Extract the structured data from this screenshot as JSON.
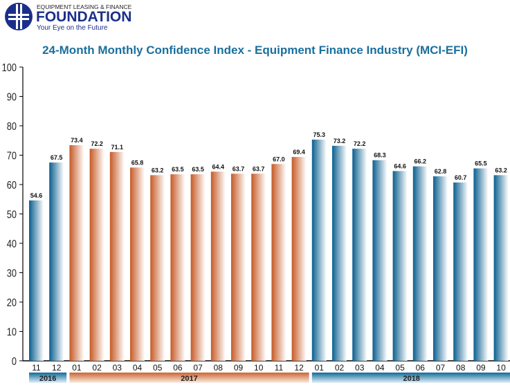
{
  "logo": {
    "line1": "EQUIPMENT LEASING & FINANCE",
    "line2": "FOUNDATION",
    "tagline": "Your Eye on the Future"
  },
  "chart_data": {
    "type": "bar",
    "title": "24-Month Monthly Confidence Index - Equipment Finance Industry (MCI-EFI)",
    "categories": [
      "11",
      "12",
      "01",
      "02",
      "03",
      "04",
      "05",
      "06",
      "07",
      "08",
      "09",
      "10",
      "11",
      "12",
      "01",
      "02",
      "03",
      "04",
      "05",
      "06",
      "07",
      "08",
      "09",
      "10"
    ],
    "years": [
      {
        "label": "2016",
        "start": 0,
        "end": 1,
        "color": "#0f6a98"
      },
      {
        "label": "2017",
        "start": 2,
        "end": 13,
        "color": "#cc6430"
      },
      {
        "label": "2018",
        "start": 14,
        "end": 23,
        "color": "#0f6a98"
      }
    ],
    "values": [
      54.6,
      67.5,
      73.4,
      72.2,
      71.1,
      65.8,
      63.2,
      63.5,
      63.5,
      64.4,
      63.7,
      63.7,
      67.0,
      69.4,
      75.3,
      73.2,
      72.2,
      68.3,
      64.6,
      66.2,
      62.8,
      60.7,
      65.5,
      63.2
    ],
    "value_labels": [
      "54.6",
      "67.5",
      "73.4",
      "72.2",
      "71.1",
      "65.8",
      "63.2",
      "63.5",
      "63.5",
      "64.4",
      "63.7",
      "63.7",
      "67.0",
      "69.4",
      "75.3",
      "73.2",
      "72.2",
      "68.3",
      "64.6",
      "66.2",
      "62.8",
      "60.7",
      "65.5",
      "63.2"
    ],
    "ylim": [
      0,
      100
    ],
    "yticks": [
      0,
      10,
      20,
      30,
      40,
      50,
      60,
      70,
      80,
      90,
      100
    ],
    "grid": false,
    "xlabel": "",
    "ylabel": ""
  }
}
